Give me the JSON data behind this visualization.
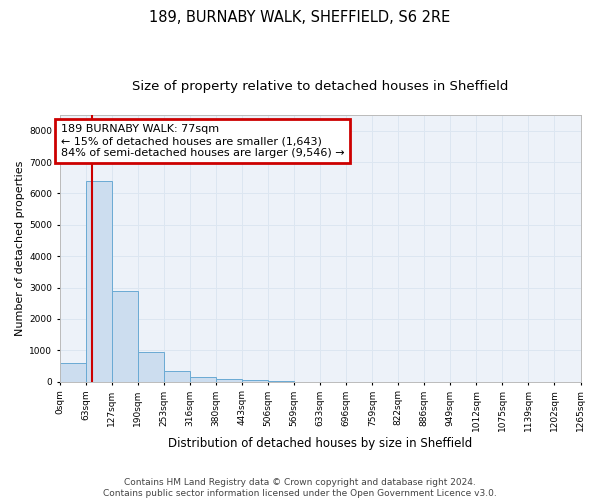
{
  "title1": "189, BURNABY WALK, SHEFFIELD, S6 2RE",
  "title2": "Size of property relative to detached houses in Sheffield",
  "xlabel": "Distribution of detached houses by size in Sheffield",
  "ylabel": "Number of detached properties",
  "bar_values": [
    600,
    6400,
    2900,
    950,
    350,
    150,
    80,
    50,
    10,
    5,
    2,
    1,
    0,
    0,
    0,
    0,
    0,
    0,
    0,
    0
  ],
  "bar_color": "#ccddef",
  "bar_edge_color": "#6aaad4",
  "tick_labels": [
    "0sqm",
    "63sqm",
    "127sqm",
    "190sqm",
    "253sqm",
    "316sqm",
    "380sqm",
    "443sqm",
    "506sqm",
    "569sqm",
    "633sqm",
    "696sqm",
    "759sqm",
    "822sqm",
    "886sqm",
    "949sqm",
    "1012sqm",
    "1075sqm",
    "1139sqm",
    "1202sqm",
    "1265sqm"
  ],
  "ylim": [
    0,
    8500
  ],
  "yticks": [
    0,
    1000,
    2000,
    3000,
    4000,
    5000,
    6000,
    7000,
    8000
  ],
  "property_size": 77,
  "bin_width": 63,
  "annotation_text": "189 BURNABY WALK: 77sqm\n← 15% of detached houses are smaller (1,643)\n84% of semi-detached houses are larger (9,546) →",
  "annotation_box_color": "#cc0000",
  "vertical_line_color": "#cc0000",
  "grid_color": "#dce6f1",
  "background_color": "#edf2f9",
  "footer_text": "Contains HM Land Registry data © Crown copyright and database right 2024.\nContains public sector information licensed under the Open Government Licence v3.0.",
  "title1_fontsize": 10.5,
  "title2_fontsize": 9.5,
  "xlabel_fontsize": 8.5,
  "ylabel_fontsize": 8,
  "tick_fontsize": 6.5,
  "annotation_fontsize": 8,
  "footer_fontsize": 6.5
}
